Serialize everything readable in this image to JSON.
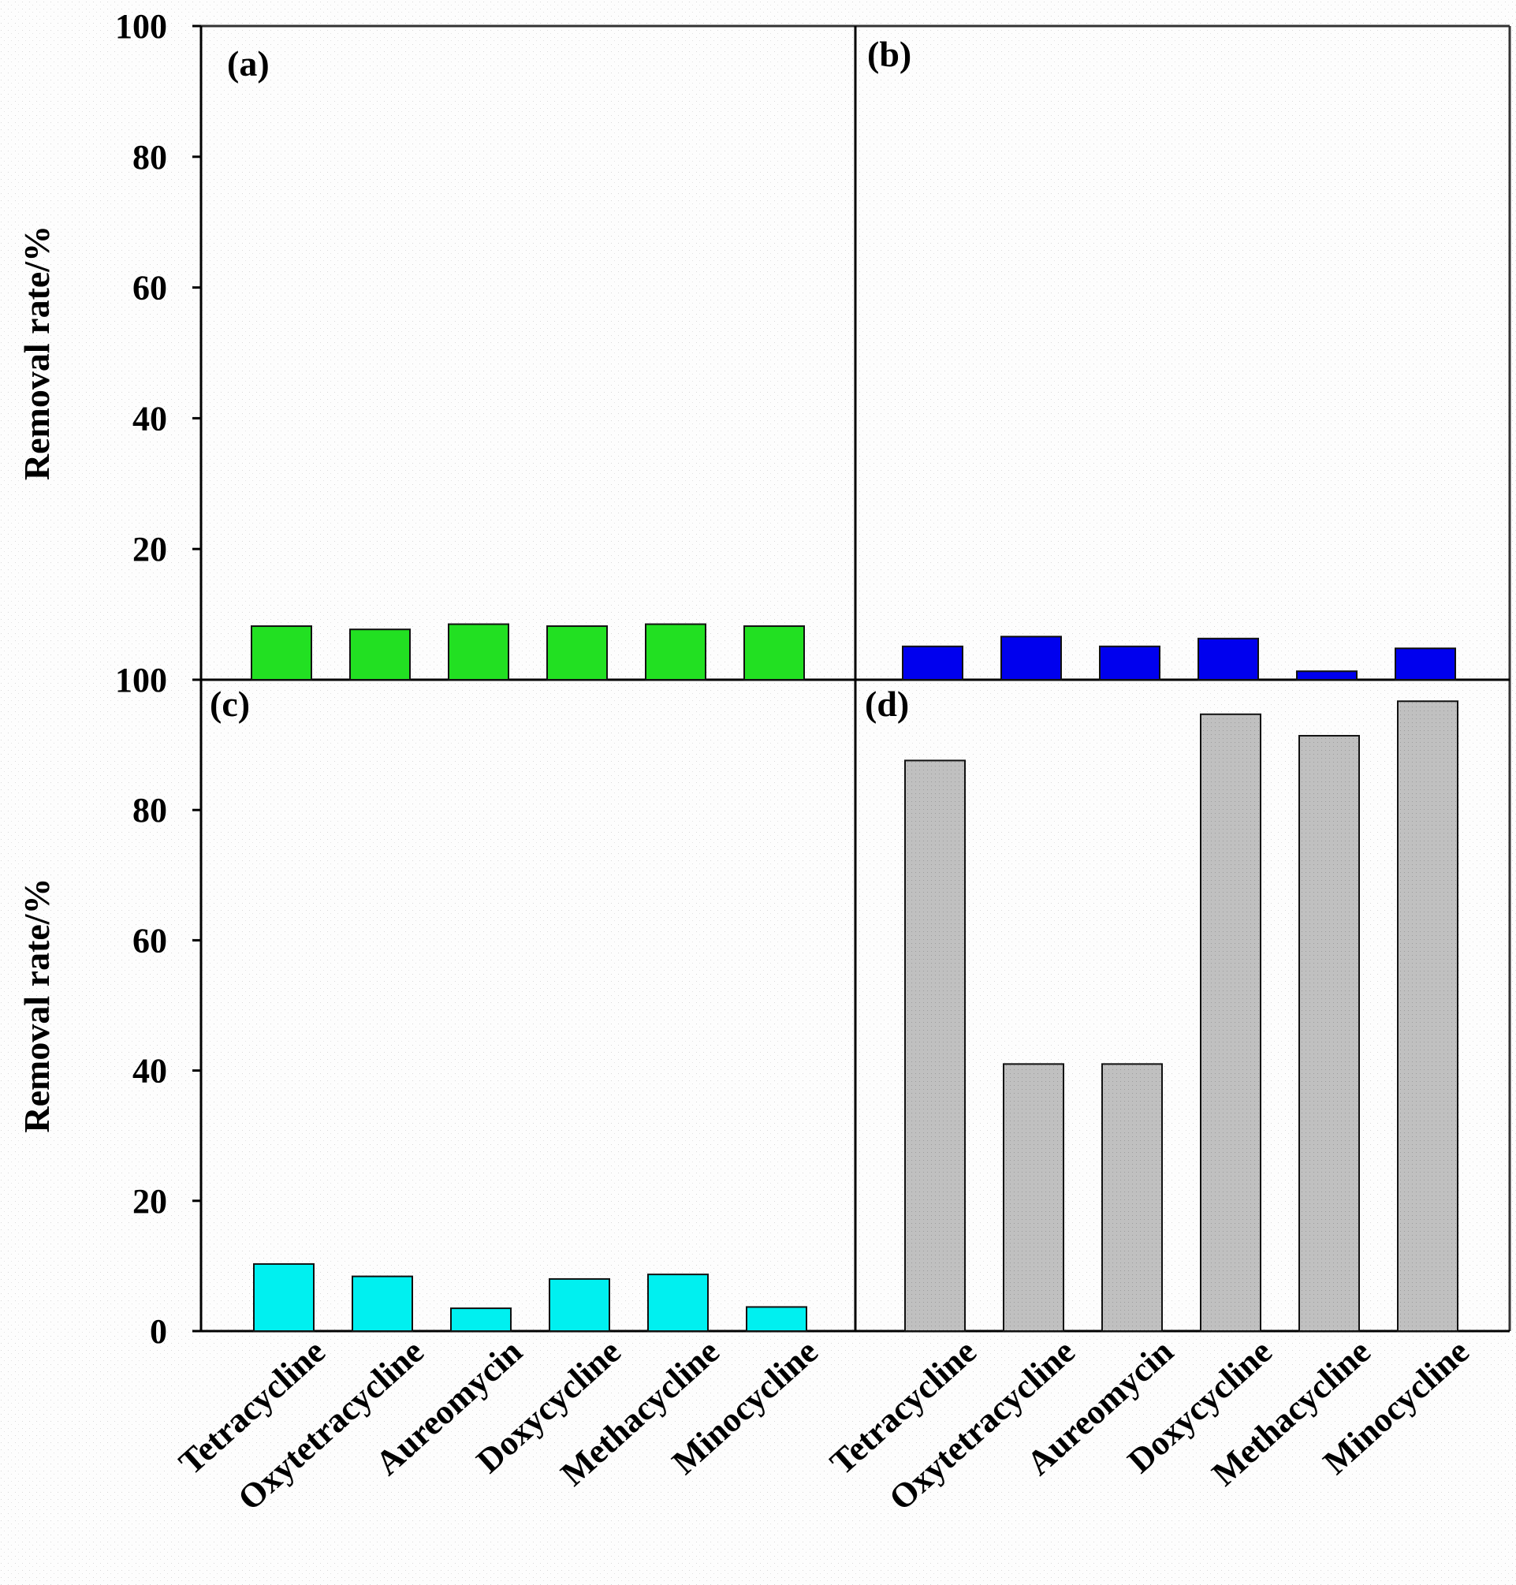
{
  "chart_data": [
    {
      "panel": "(a)",
      "type": "bar",
      "categories": [
        "Tetracycline",
        "Oxytetracycline",
        "Aureomycin",
        "Doxycycline",
        "Methacycline",
        "Minocycline"
      ],
      "values": [
        8.2,
        7.7,
        8.5,
        8.2,
        8.5,
        8.2
      ],
      "color": "#22e022",
      "ylabel": "Removal rate/%",
      "ylim": [
        0,
        100
      ],
      "yticks": [
        "100",
        "80",
        "60",
        "40",
        "20"
      ]
    },
    {
      "panel": "(b)",
      "type": "bar",
      "categories": [
        "Tetracycline",
        "Oxytetracycline",
        "Aureomycin",
        "Doxycycline",
        "Methacycline",
        "Minocycline"
      ],
      "values": [
        5.1,
        6.6,
        5.1,
        6.3,
        1.3,
        4.8
      ],
      "color": "#0000ee",
      "ylim": [
        0,
        100
      ]
    },
    {
      "panel": "(c)",
      "type": "bar",
      "categories": [
        "Tetracycline",
        "Oxytetracycline",
        "Aureomycin",
        "Doxycycline",
        "Methacycline",
        "Minocycline"
      ],
      "values": [
        10.3,
        8.4,
        3.5,
        8.0,
        8.7,
        3.7
      ],
      "color": "#00f0f0",
      "ylabel": "Removal rate/%",
      "ylim": [
        0,
        100
      ],
      "yticks": [
        "100",
        "80",
        "60",
        "40",
        "20",
        "0"
      ],
      "xticklabels": [
        "Tetracycline",
        "Oxytetracycline",
        "Aureomycin",
        "Doxycycline",
        "Methacycline",
        "Minocycline"
      ]
    },
    {
      "panel": "(d)",
      "type": "bar",
      "categories": [
        "Tetracycline",
        "Oxytetracycline",
        "Aureomycin",
        "Doxycycline",
        "Methacycline",
        "Minocycline"
      ],
      "values": [
        87.6,
        41.0,
        41.0,
        94.7,
        91.4,
        96.7
      ],
      "color": "#c0c0c0",
      "ylim": [
        0,
        100
      ],
      "xticklabels": [
        "Tetracycline",
        "Oxytetracycline",
        "Aureomycin",
        "Doxycycline",
        "Methacycline",
        "Minocycline"
      ]
    }
  ]
}
